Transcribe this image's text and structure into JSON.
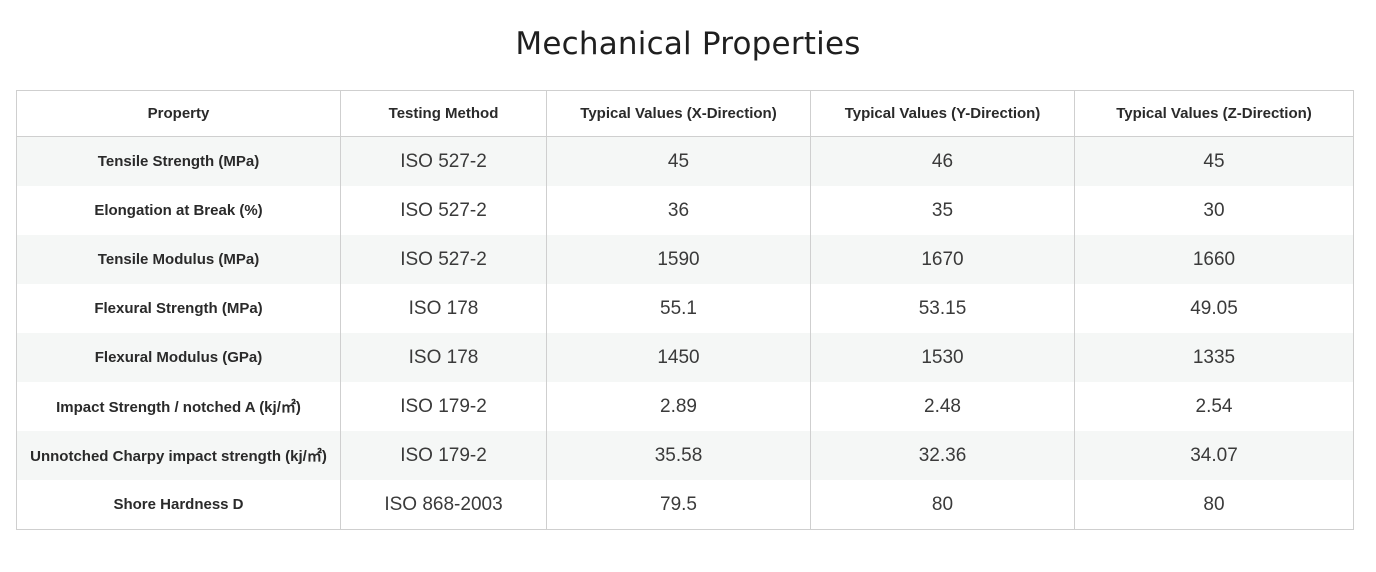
{
  "title": "Mechanical Properties",
  "table": {
    "headers": [
      "Property",
      "Testing Method",
      "Typical Values (X-Direction)",
      "Typical Values (Y-Direction)",
      "Typical Values (Z-Direction)"
    ],
    "rows": [
      [
        "Tensile Strength (MPa)",
        "ISO 527-2",
        "45",
        "46",
        "45"
      ],
      [
        "Elongation at Break (%)",
        "ISO 527-2",
        "36",
        "35",
        "30"
      ],
      [
        "Tensile Modulus (MPa)",
        "ISO 527-2",
        "1590",
        "1670",
        "1660"
      ],
      [
        "Flexural Strength (MPa)",
        "ISO 178",
        "55.1",
        "53.15",
        "49.05"
      ],
      [
        "Flexural Modulus (GPa)",
        "ISO 178",
        "1450",
        "1530",
        "1335"
      ],
      [
        "Impact Strength / notched A (kj/㎡)",
        "ISO 179-2",
        "2.89",
        "2.48",
        "2.54"
      ],
      [
        "Unnotched Charpy impact strength (kj/㎡)",
        "ISO 179-2",
        "35.58",
        "32.36",
        "34.07"
      ],
      [
        "Shore Hardness D",
        "ISO 868-2003",
        "79.5",
        "80",
        "80"
      ]
    ]
  }
}
